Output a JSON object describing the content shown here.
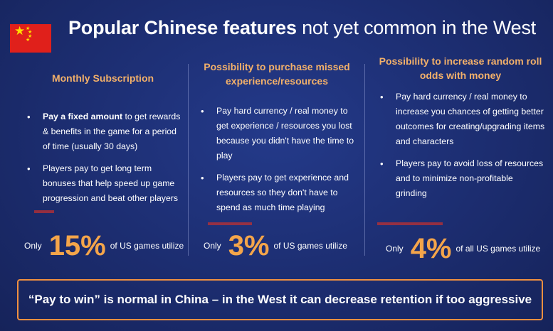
{
  "title": {
    "bold": "Popular Chinese features",
    "light": "not yet common in the West"
  },
  "columns": [
    {
      "heading": "Monthly Subscription",
      "bullets": [
        {
          "bold": "Pay a fixed amount",
          "text": " to get rewards & benefits in the game for a period of time (usually 30 days)"
        },
        {
          "bold": "",
          "text": "Players pay to get long term bonuses that help speed up game progression and beat other players"
        }
      ],
      "stat": {
        "prefix": "Only",
        "percent": "15%",
        "suffix": "of US games utilize"
      }
    },
    {
      "heading": "Possibility to purchase missed experience/resources",
      "bullets": [
        {
          "bold": "",
          "text": "Pay hard currency / real money to get experience / resources you lost because you didn't have the time to play"
        },
        {
          "bold": "",
          "text": "Players pay to get experience and resources so they don't have to spend as much time playing"
        }
      ],
      "stat": {
        "prefix": "Only",
        "percent": "3%",
        "suffix": "of US games utilize"
      }
    },
    {
      "heading": "Possibility to increase random roll odds with money",
      "bullets": [
        {
          "bold": "",
          "text": "Pay hard currency / real money to increase you chances of getting better outcomes for creating/upgrading items and characters"
        },
        {
          "bold": "",
          "text": "Players pay to avoid loss of resources and to minimize non-profitable grinding"
        }
      ],
      "stat": {
        "prefix": "Only",
        "percent": "4%",
        "suffix": "of all US games utilize"
      }
    }
  ],
  "banner": "“Pay to win” is normal in China – in the West it can decrease retention if too aggressive",
  "colors": {
    "accent": "#f4a54a",
    "heading": "#f2b06a",
    "background": "#1c2d70",
    "flag_red": "#e0201b",
    "flag_star": "#ffde00"
  }
}
